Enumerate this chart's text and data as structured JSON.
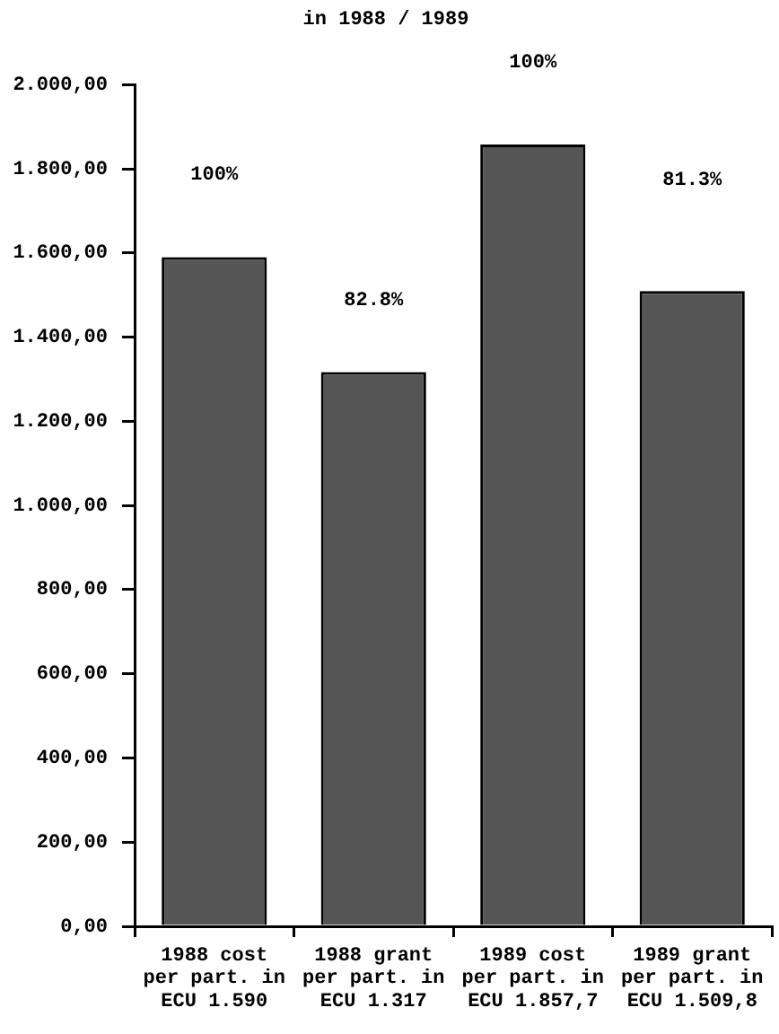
{
  "chart_data": {
    "type": "bar",
    "title": "in 1988 / 1989",
    "categories": [
      "1988 cost\nper part. in\nECU 1.590",
      "1988 grant\nper part. in\nECU 1.317",
      "1989 cost\nper part. in\nECU 1.857,7",
      "1989 grant\nper part. in\nECU 1.509,8"
    ],
    "values": [
      1590,
      1317,
      1857.7,
      1509.8
    ],
    "color": "#555555",
    "ylim": [
      0,
      2000
    ],
    "yticks": [
      {
        "value": 0,
        "label": "0,00"
      },
      {
        "value": 200,
        "label": "200,00"
      },
      {
        "value": 400,
        "label": "400,00"
      },
      {
        "value": 600,
        "label": "600,00"
      },
      {
        "value": 800,
        "label": "800,00"
      },
      {
        "value": 1000,
        "label": "1.000,00"
      },
      {
        "value": 1200,
        "label": "1.200,00"
      },
      {
        "value": 1400,
        "label": "1.400,00"
      },
      {
        "value": 1600,
        "label": "1.600,00"
      },
      {
        "value": 1800,
        "label": "1.800,00"
      },
      {
        "value": 2000,
        "label": "2.000,00"
      }
    ],
    "grid": false,
    "legend": false,
    "annotations": [
      "100%",
      "82.8%",
      "100%",
      "81.3%"
    ]
  }
}
